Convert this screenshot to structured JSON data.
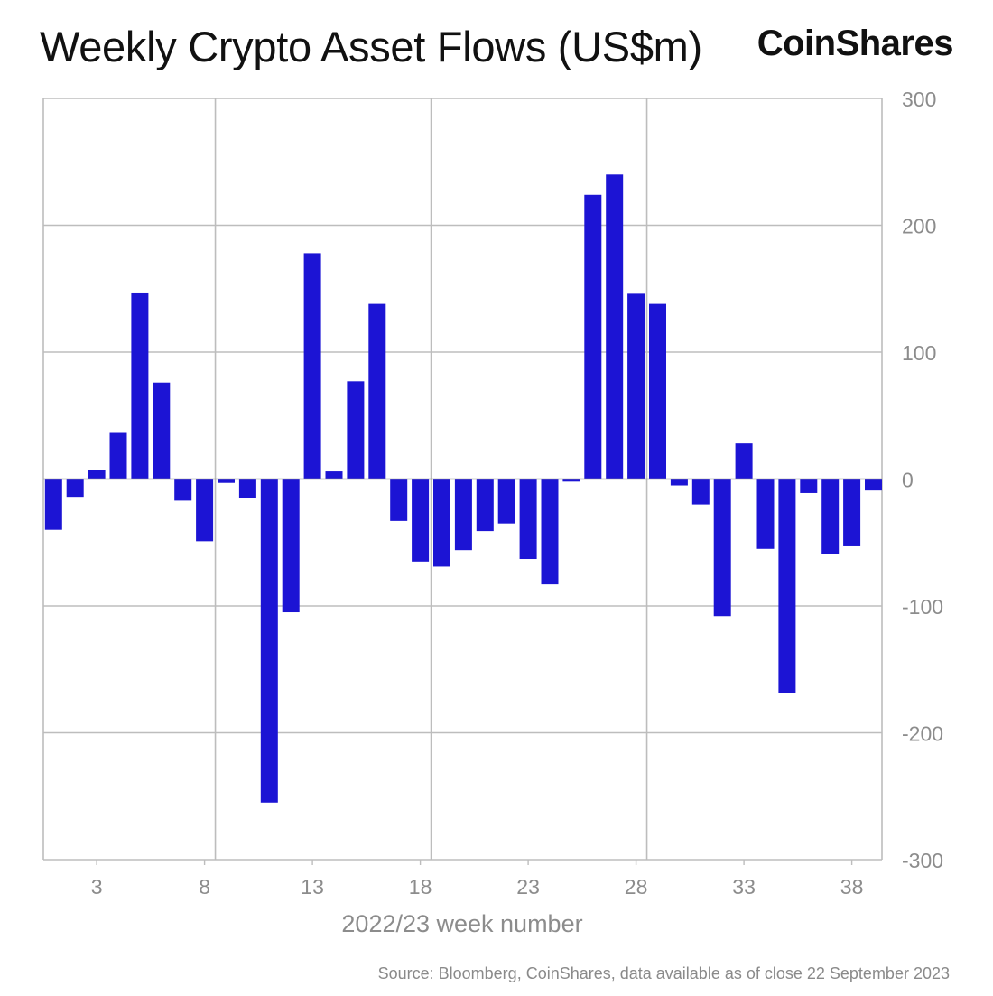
{
  "header": {
    "title": "Weekly Crypto Asset Flows (US$m)",
    "brand": "CoinShares"
  },
  "source": "Source: Bloomberg, CoinShares, data available as of close 22 September 2023",
  "colors": {
    "bar": "#1c14d4",
    "grid": "#bdbdbd",
    "tick_text": "#8c8c8c",
    "axis_label": "#8c8c8c"
  },
  "chart_data": {
    "type": "bar",
    "title": "Weekly Crypto Asset Flows (US$m)",
    "xlabel": "2022/23 week number",
    "ylabel": "",
    "x": [
      1,
      2,
      3,
      4,
      5,
      6,
      7,
      8,
      9,
      10,
      11,
      12,
      13,
      14,
      15,
      16,
      17,
      18,
      19,
      20,
      21,
      22,
      23,
      24,
      25,
      26,
      27,
      28,
      29,
      30,
      31,
      32,
      33,
      34,
      35,
      36,
      37,
      38,
      39
    ],
    "values": [
      -40,
      -14,
      7,
      37,
      147,
      76,
      -17,
      -49,
      -3,
      -15,
      -255,
      -105,
      178,
      6,
      77,
      138,
      -33,
      -65,
      -69,
      -56,
      -41,
      -35,
      -63,
      -83,
      -2,
      224,
      240,
      146,
      138,
      -5,
      -20,
      -108,
      28,
      -55,
      -169,
      -11,
      -59,
      -53,
      -9
    ],
    "x_ticks": [
      "3",
      "8",
      "13",
      "18",
      "23",
      "28",
      "33",
      "38"
    ],
    "x_tick_values": [
      3,
      8,
      13,
      18,
      23,
      28,
      33,
      38
    ],
    "x_grid_values": [
      9,
      19,
      29
    ],
    "ylim": [
      -300,
      300
    ],
    "y_ticks": [
      "300",
      "200",
      "100",
      "0",
      "-100",
      "-200",
      "-300"
    ],
    "y_tick_values": [
      300,
      200,
      100,
      0,
      -100,
      -200,
      -300
    ],
    "y_axis_side": "right",
    "grid": true
  }
}
